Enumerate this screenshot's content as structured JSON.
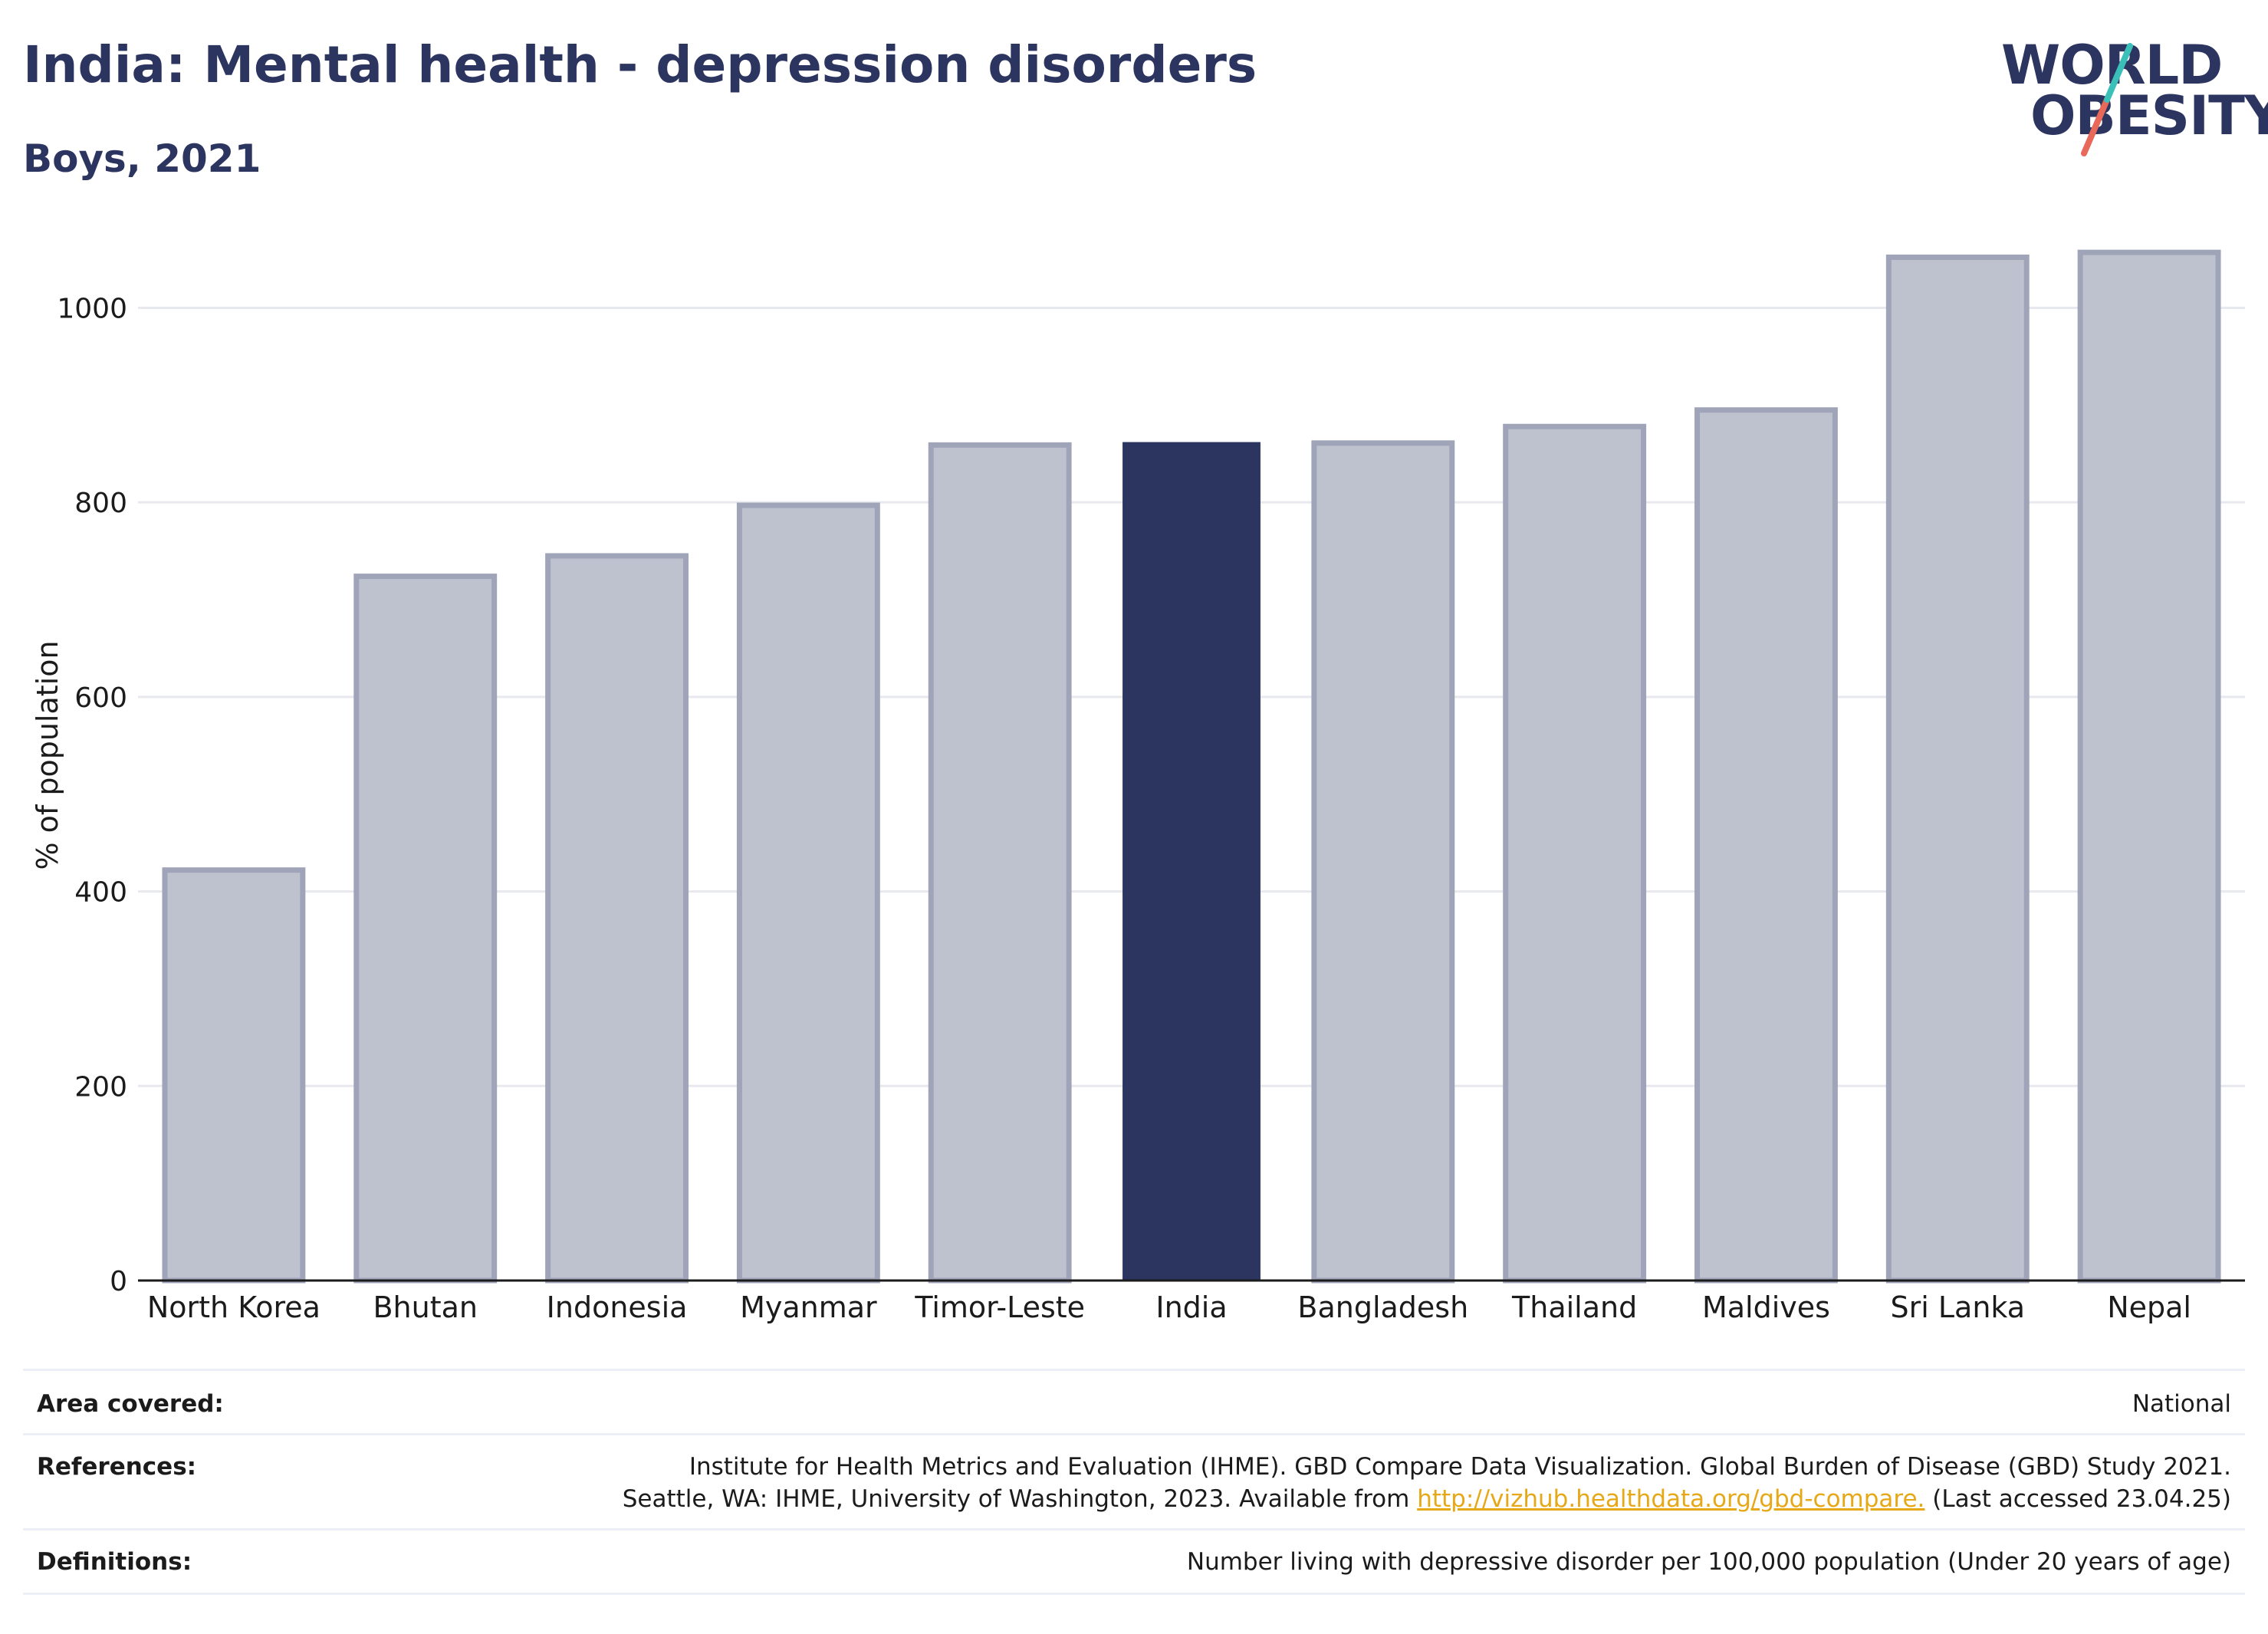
{
  "header": {
    "title": "India: Mental health - depression disorders",
    "subtitle": "Boys, 2021"
  },
  "logo": {
    "line1": "WORLD",
    "line2": "OBESITY",
    "colors": {
      "text": "#2c3560",
      "slash_top": "#3bbfb9",
      "slash_bottom": "#e8685a"
    }
  },
  "chart_data": {
    "type": "bar",
    "title": "India: Mental health - depression disorders",
    "subtitle": "Boys, 2021",
    "ylabel": "% of population",
    "xlabel": "",
    "ylim": [
      0,
      1080
    ],
    "yticks": [
      0,
      200,
      400,
      600,
      800,
      1000
    ],
    "grid": true,
    "categories": [
      "North Korea",
      "Bhutan",
      "Indonesia",
      "Myanmar",
      "Timor-Leste",
      "India",
      "Bangladesh",
      "Thailand",
      "Maldives",
      "Sri Lanka",
      "Nepal"
    ],
    "values": [
      422,
      724,
      745,
      797,
      859,
      862,
      861,
      878,
      895,
      1052,
      1057
    ],
    "highlight": "India",
    "colors": {
      "highlight": "#2c3560",
      "other_fill": "#bec1ce",
      "other_stroke": "#9fa4b8",
      "grid": "#e7e9ef",
      "axis": "#1b1b1b"
    }
  },
  "meta": {
    "area_key": "Area covered:",
    "area_val": "National",
    "ref_key": "References:",
    "ref_line1": "Institute for Health Metrics and Evaluation (IHME). GBD Compare Data Visualization. Global Burden of Disease (GBD) Study 2021.",
    "ref_line2_pre": "Seattle, WA: IHME, University of Washington, 2023. Available from ",
    "ref_link": "http://vizhub.healthdata.org/gbd-compare.",
    "ref_line2_post": " (Last accessed 23.04.25)",
    "def_key": "Definitions:",
    "def_val": "Number living with depressive disorder per 100,000 population (Under 20 years of age)"
  }
}
